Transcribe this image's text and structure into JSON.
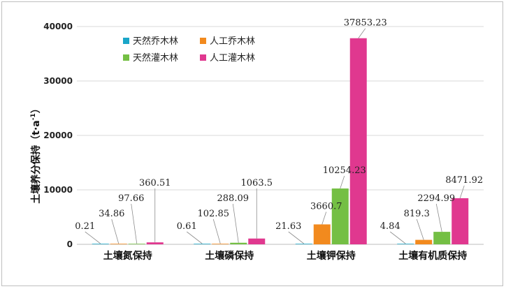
{
  "chart_data": {
    "type": "bar",
    "ylabel": "土壤养分保持",
    "yunit_main": "（t·a",
    "yunit_sup": "-1",
    "yunit_end": "）",
    "ylim": [
      0,
      40000
    ],
    "yticks": [
      0,
      10000,
      20000,
      30000,
      40000
    ],
    "categories": [
      "土壤氮保持",
      "土壤磷保持",
      "土壤钾保持",
      "土壤有机质保持"
    ],
    "series": [
      {
        "name": "天然乔木林",
        "color": "#1aa6c8",
        "values": [
          0.21,
          0.61,
          21.63,
          4.84
        ],
        "labels": [
          "0.21",
          "0.61",
          "21.63",
          "4.84"
        ]
      },
      {
        "name": "人工乔木林",
        "color": "#f28a1e",
        "values": [
          34.86,
          102.85,
          3660.7,
          819.3
        ],
        "labels": [
          "34.86",
          "102.85",
          "3660.7",
          "819.3"
        ]
      },
      {
        "name": "天然灌木林",
        "color": "#74bf44",
        "values": [
          97.66,
          288.09,
          10254.23,
          2294.99
        ],
        "labels": [
          "97.66",
          "288.09",
          "10254.23",
          "2294.99"
        ]
      },
      {
        "name": "人工灌木林",
        "color": "#e0388f",
        "values": [
          360.51,
          1063.5,
          37853.23,
          8471.92
        ],
        "labels": [
          "360.51",
          "1063.5",
          "37853.23",
          "8471.92"
        ]
      }
    ],
    "grid": true,
    "legend_position": "top-left"
  }
}
